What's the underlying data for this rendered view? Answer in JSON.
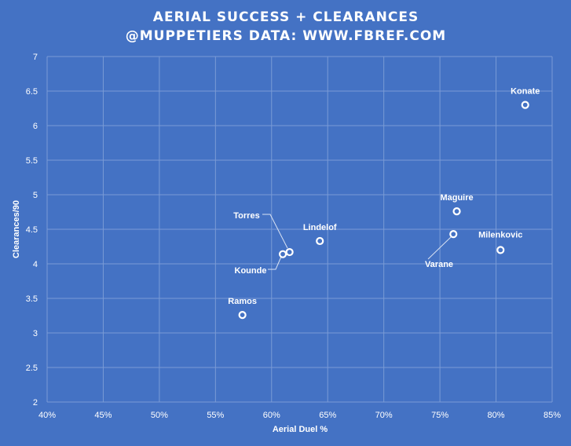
{
  "colors": {
    "background": "#4472C4",
    "grid": "#7A9BD6",
    "text": "#FFFFFF",
    "marker": "#FFFFFF",
    "leader": "#D9E2F3"
  },
  "chart_data": {
    "type": "scatter",
    "title": "AERIAL SUCCESS + CLEARANCES",
    "subtitle": "@MUPPETIERS DATA: WWW.FBREF.COM",
    "xlabel": "Aerial Duel %",
    "ylabel": "Clearances/90",
    "xlim": [
      0.4,
      0.85
    ],
    "ylim": [
      2,
      7
    ],
    "grid": true,
    "x_ticks": [
      "40%",
      "45%",
      "50%",
      "55%",
      "60%",
      "65%",
      "70%",
      "75%",
      "80%",
      "85%"
    ],
    "y_ticks": [
      "2",
      "2.5",
      "3",
      "3.5",
      "4",
      "4.5",
      "5",
      "5.5",
      "6",
      "6.5",
      "7"
    ],
    "points": [
      {
        "label": "Konate",
        "x": 0.826,
        "y": 6.3
      },
      {
        "label": "Maguire",
        "x": 0.765,
        "y": 4.76
      },
      {
        "label": "Varane",
        "x": 0.762,
        "y": 4.43
      },
      {
        "label": "Milenkovic",
        "x": 0.804,
        "y": 4.2
      },
      {
        "label": "Lindelof",
        "x": 0.643,
        "y": 4.33
      },
      {
        "label": "Torres",
        "x": 0.616,
        "y": 4.17
      },
      {
        "label": "Kounde",
        "x": 0.61,
        "y": 4.14
      },
      {
        "label": "Ramos",
        "x": 0.574,
        "y": 3.26
      }
    ]
  }
}
